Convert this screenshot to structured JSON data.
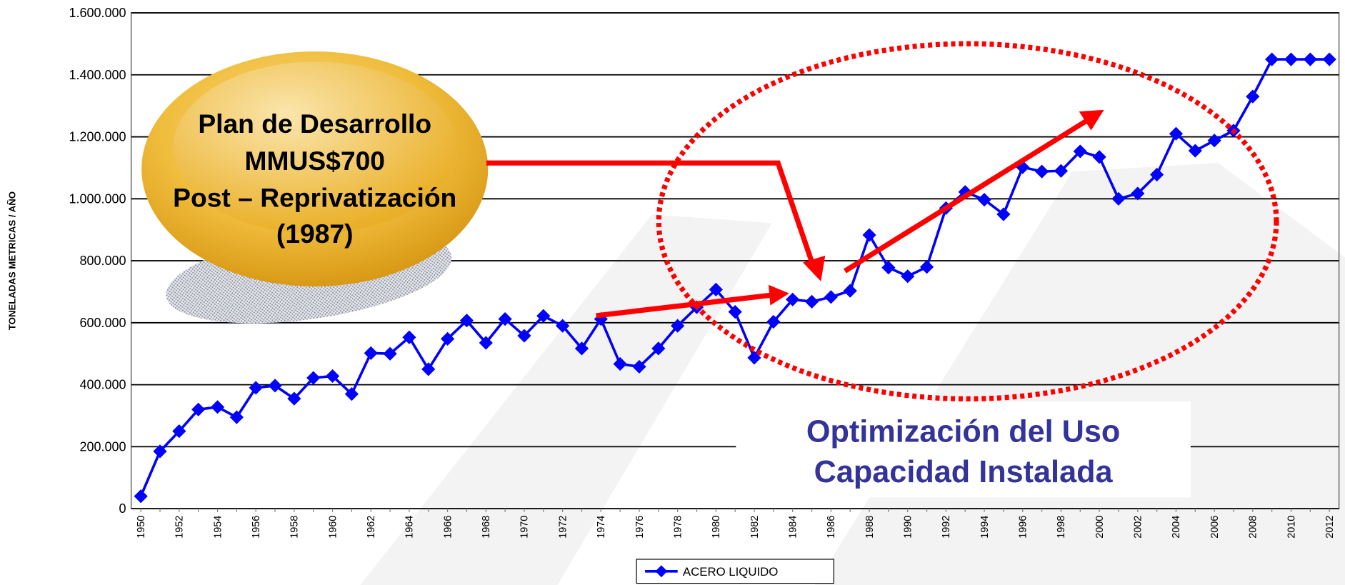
{
  "chart_data": {
    "type": "line",
    "y_label": "TONELADAS METRICAS / AÑO",
    "categories": [
      "1950",
      null,
      "1952",
      null,
      "1954",
      null,
      "1956",
      null,
      "1958",
      null,
      "1960",
      null,
      "1962",
      null,
      "1964",
      null,
      "1966",
      null,
      "1968",
      null,
      "1970",
      null,
      "1972",
      null,
      "1974",
      null,
      "1976",
      null,
      "1978",
      null,
      "1980",
      null,
      "1982",
      null,
      "1984",
      null,
      "1986",
      null,
      "1988",
      null,
      "1990",
      null,
      "1992",
      null,
      "1994",
      null,
      "1996",
      null,
      "1998",
      null,
      "2000",
      null,
      "2002",
      null,
      "2004",
      null,
      "2006",
      null,
      "2008",
      null,
      "2010",
      null,
      "2012"
    ],
    "series": [
      {
        "name": "ACERO LIQUIDO",
        "color": "#0000ff",
        "values": [
          40000,
          185000,
          250000,
          320000,
          328000,
          295000,
          390000,
          397000,
          355000,
          422000,
          428000,
          370000,
          502000,
          500000,
          553000,
          450000,
          548000,
          607000,
          535000,
          612000,
          558000,
          622000,
          590000,
          517000,
          612000,
          467000,
          458000,
          517000,
          590000,
          650000,
          707000,
          635000,
          487000,
          603000,
          675000,
          668000,
          683000,
          703000,
          883000,
          778000,
          750000,
          780000,
          970000,
          1022000,
          997000,
          950000,
          1102000,
          1088000,
          1090000,
          1153000,
          1135000,
          1000000,
          1017000,
          1078000,
          1210000,
          1155000,
          1188000,
          1220000,
          1330000,
          1450000,
          1450000,
          1450000,
          1450000
        ]
      }
    ],
    "ylim": [
      0,
      1600000
    ],
    "yticks": [
      0,
      {
        "value": 200000,
        "label": "200.000"
      },
      {
        "value": 400000,
        "label": "400.000"
      },
      {
        "value": 600000,
        "label": "600.000"
      },
      {
        "value": 800000,
        "label": "800.000"
      },
      {
        "value": 1000000,
        "label": "1.000.000"
      },
      {
        "value": 1200000,
        "label": "1.200.000"
      },
      {
        "value": 1400000,
        "label": "1.400.000"
      },
      {
        "value": 1600000,
        "label": "1.600.000"
      }
    ],
    "grid": true,
    "legend": "bottom",
    "annotations": {
      "plan": [
        "Plan de Desarrollo",
        "MMUS$700",
        "Post – Reprivatización",
        "(1987)"
      ],
      "optimizacion": [
        "Optimización del Uso",
        "Capacidad Instalada"
      ]
    }
  }
}
